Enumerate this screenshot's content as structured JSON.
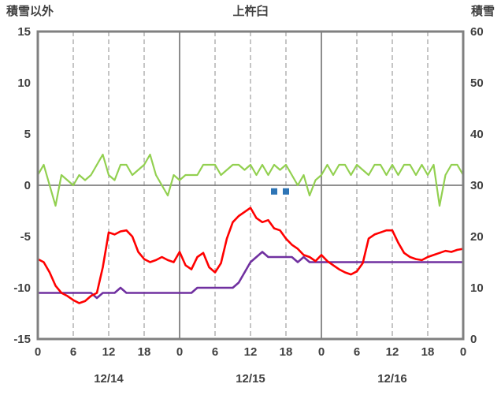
{
  "chart_data": {
    "type": "line",
    "title": "上杵臼",
    "left_axis_label": "積雪以外",
    "right_axis_label": "積雪",
    "x_range": [
      0,
      72
    ],
    "x_ticks": [
      0,
      6,
      12,
      18,
      24,
      30,
      36,
      42,
      48,
      54,
      60,
      66,
      72
    ],
    "x_tick_labels": [
      "0",
      "6",
      "12",
      "18",
      "0",
      "6",
      "12",
      "18",
      "0",
      "6",
      "12",
      "18",
      "0"
    ],
    "day_labels": [
      {
        "label": "12/14",
        "x": 12
      },
      {
        "label": "12/15",
        "x": 36
      },
      {
        "label": "12/16",
        "x": 60
      }
    ],
    "left_ylim": [
      -15,
      15
    ],
    "left_ticks": [
      15,
      10,
      5,
      0,
      -5,
      -10,
      -15
    ],
    "right_ylim": [
      0,
      60
    ],
    "right_ticks": [
      60,
      50,
      40,
      30,
      20,
      10,
      0
    ],
    "grid": {
      "vertical_dashed": true,
      "day_boundary_solid": true,
      "zero_line": true
    },
    "colors": {
      "frame": "#808080",
      "gridline": "#a6a6a6",
      "text": "#404040",
      "red_series": "#ff0000",
      "green_series": "#92d050",
      "purple_series": "#7030a0",
      "blue_markers": "#2e75b6"
    },
    "series": [
      {
        "name": "green-series",
        "color": "#92d050",
        "axis": "left",
        "width": 2.2,
        "x_start": 0,
        "x_step": 1,
        "values": [
          1,
          2,
          0,
          -2,
          1,
          0.5,
          0,
          1,
          0.5,
          1,
          2,
          3,
          1,
          0.5,
          2,
          2,
          1,
          1.5,
          2,
          3,
          1,
          0,
          -1,
          1,
          0.5,
          1,
          1,
          1,
          2,
          2,
          2,
          1,
          1.5,
          2,
          2,
          1.5,
          2,
          1,
          2,
          1,
          2,
          1.5,
          2,
          1,
          0,
          1,
          -1,
          0.5,
          1,
          2,
          1,
          2,
          2,
          1,
          2,
          1.5,
          1,
          2,
          2,
          1,
          2,
          1,
          2,
          2,
          1,
          2,
          1,
          2,
          -2,
          1,
          2,
          2,
          1
        ]
      },
      {
        "name": "snow-depth-series",
        "color": "#7030a0",
        "axis": "right",
        "width": 2.6,
        "x_start": 0,
        "x_step": 1,
        "values": [
          9,
          9,
          9,
          9,
          9,
          9,
          9,
          9,
          9,
          9,
          8,
          9,
          9,
          9,
          10,
          9,
          9,
          9,
          9,
          9,
          9,
          9,
          9,
          9,
          9,
          9,
          9,
          10,
          10,
          10,
          10,
          10,
          10,
          10,
          11,
          13,
          15,
          16,
          17,
          16,
          16,
          16,
          16,
          16,
          15,
          16,
          15,
          15,
          15,
          15,
          15,
          15,
          15,
          15,
          15,
          15,
          15,
          15,
          15,
          15,
          15,
          15,
          15,
          15,
          15,
          15,
          15,
          15,
          15,
          15,
          15,
          15,
          15
        ]
      },
      {
        "name": "red-series",
        "color": "#ff0000",
        "axis": "left",
        "width": 2.6,
        "x_start": 0,
        "x_step": 1,
        "values": [
          -7.2,
          -7.5,
          -8.5,
          -9.8,
          -10.5,
          -10.8,
          -11.2,
          -11.5,
          -11.3,
          -10.8,
          -10.5,
          -8,
          -4.6,
          -4.8,
          -4.5,
          -4.4,
          -5,
          -6.5,
          -7.2,
          -7.5,
          -7.3,
          -7,
          -7.3,
          -7.5,
          -6.5,
          -7.8,
          -8.2,
          -7,
          -6.6,
          -8,
          -8.5,
          -7.6,
          -5.2,
          -3.6,
          -3,
          -2.6,
          -2.2,
          -3.2,
          -3.6,
          -3.4,
          -4.2,
          -4.4,
          -5.2,
          -5.8,
          -6.2,
          -6.8,
          -7,
          -7.4,
          -6.8,
          -7.4,
          -7.8,
          -8.2,
          -8.5,
          -8.7,
          -8.4,
          -7.6,
          -5.2,
          -4.8,
          -4.6,
          -4.4,
          -4.4,
          -5.6,
          -6.6,
          -7,
          -7.2,
          -7.3,
          -7,
          -6.8,
          -6.6,
          -6.4,
          -6.5,
          -6.3,
          -6.2
        ]
      },
      {
        "name": "blue-square-markers",
        "type": "squares",
        "color": "#2e75b6",
        "axis": "left",
        "size": 8,
        "x": [
          40,
          42
        ],
        "values": [
          -0.6,
          -0.6
        ]
      }
    ]
  }
}
